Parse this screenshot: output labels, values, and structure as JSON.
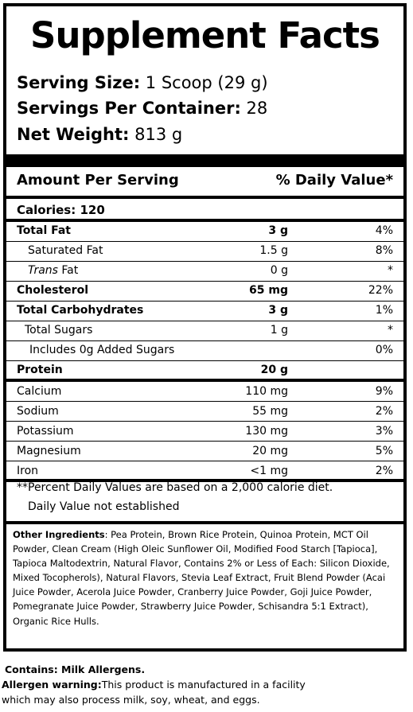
{
  "title": "Supplement Facts",
  "serving": {
    "size_label": "Serving Size:",
    "size_value": "1 Scoop (29 g)",
    "per_container_label": "Servings Per Container:",
    "per_container_value": "28",
    "net_weight_label": "Net Weight:",
    "net_weight_value": "813 g"
  },
  "header": {
    "amount_per_serving": "Amount Per Serving",
    "daily_value": "% Daily Value*"
  },
  "calories": "Calories: 120",
  "nutrients": [
    {
      "name": "Total Fat",
      "amount": "3 g",
      "dv": "4%"
    },
    {
      "name": "Saturated Fat",
      "amount": "1.5 g",
      "dv": "8%"
    },
    {
      "name_italic": "Trans",
      "name_rest": " Fat",
      "amount": "0 g",
      "dv": "*"
    },
    {
      "name": "Cholesterol",
      "amount": "65 mg",
      "dv": "22%"
    },
    {
      "name": "Total Carbohydrates",
      "amount": "3 g",
      "dv": "1%"
    },
    {
      "name": "Total Sugars",
      "amount": "1 g",
      "dv": "*"
    },
    {
      "name": "Includes 0g Added Sugars",
      "amount": "",
      "dv": "0%"
    },
    {
      "name": "Protein",
      "amount": "20 g",
      "dv": ""
    },
    {
      "name": "Calcium",
      "amount": "110 mg",
      "dv": "9%"
    },
    {
      "name": "Sodium",
      "amount": "55 mg",
      "dv": "2%"
    },
    {
      "name": "Potassium",
      "amount": "130 mg",
      "dv": "3%"
    },
    {
      "name": "Magnesium",
      "amount": "20 mg",
      "dv": "5%"
    },
    {
      "name": "Iron",
      "amount": "<1 mg",
      "dv": "2%"
    }
  ],
  "footnotes": {
    "percent_dv": "**Percent Daily Values are based on a 2,000 calorie diet.",
    "not_established": "Daily Value not established"
  },
  "ingredients": {
    "label": "Other Ingredients",
    "text": ": Pea Protein, Brown Rice Protein, Quinoa Protein, MCT Oil Powder, Clean Cream (High Oleic Sunflower Oil, Modified Food Starch [Tapioca], Tapioca Maltodextrin, Natural Flavor, Contains 2% or Less of Each: Silicon Dioxide, Mixed Tocopherols), Natural Flavors, Stevia Leaf Extract, Fruit Blend Powder (Acai Juice Powder, Acerola Juice Powder, Cranberry Juice Powder, Goji Juice Powder, Pomegranate Juice Powder, Strawberry Juice Powder, Schisandra 5:1 Extract), Organic Rice Hulls."
  },
  "contains": "Contains: Milk Allergens.",
  "allergen": {
    "label": "Allergen warning:",
    "text_line1": "This product is manufactured in a facility",
    "text_line2": "which may also process milk, soy, wheat, and eggs."
  }
}
